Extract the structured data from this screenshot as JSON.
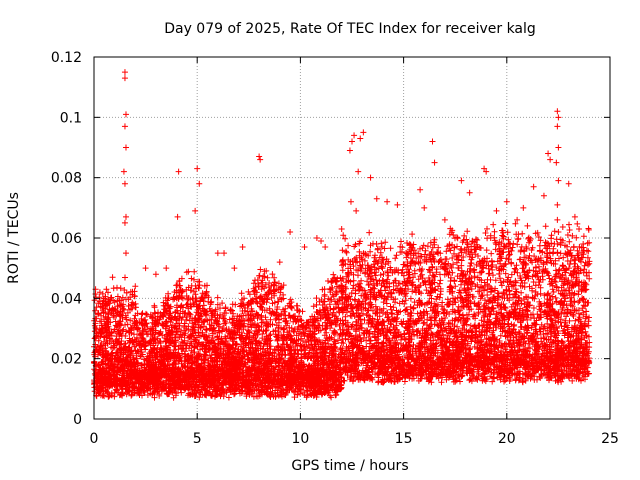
{
  "chart_data": {
    "type": "scatter",
    "title": "Day 079 of 2025, Rate Of TEC Index for receiver kalg",
    "xlabel": "GPS time / hours",
    "ylabel": "ROTI / TECUs",
    "xlim": [
      0,
      25
    ],
    "ylim": [
      0,
      0.12
    ],
    "x_ticks": [
      0,
      5,
      10,
      15,
      20,
      25
    ],
    "x_tick_labels": [
      "0",
      "5",
      "10",
      "15",
      "20",
      "25"
    ],
    "y_ticks": [
      0,
      0.02,
      0.04,
      0.06,
      0.08,
      0.1,
      0.12
    ],
    "y_tick_labels": [
      "0",
      "0.02",
      "0.04",
      "0.06",
      "0.08",
      "0.1",
      "0.12"
    ],
    "grid": true,
    "marker": "plus",
    "color": "#ff0000",
    "series": [
      {
        "x": [
          1.5,
          1.5,
          1.55,
          1.5,
          1.55,
          1.45,
          1.5,
          1.55,
          1.5,
          1.55,
          22.45,
          22.5,
          22.45,
          22.5,
          22.4,
          22.5,
          22.45,
          22.45,
          22.5,
          22.45,
          12.4,
          12.5,
          12.6,
          12.9,
          13.05,
          13.4,
          12.45,
          12.8,
          12.7,
          8.0,
          8.05,
          16.4,
          16.5,
          17.8,
          18.9,
          19.0,
          21.3,
          22.0,
          22.1,
          23.0,
          4.1,
          4.05,
          5.0,
          5.1,
          4.9,
          3.5,
          6.3,
          7.2,
          9.5,
          11.0,
          11.2,
          12.0,
          14.2,
          15.3,
          16.0,
          17.0,
          18.2,
          20.0,
          20.5,
          21.0,
          23.5,
          23.7,
          2.0,
          2.5,
          0.9,
          0.6,
          3.0,
          6.0,
          6.8,
          7.8,
          9.0,
          10.2,
          10.8,
          13.7,
          14.7,
          15.8,
          19.5,
          20.8,
          21.8,
          23.3
        ],
        "y": [
          0.115,
          0.113,
          0.101,
          0.097,
          0.09,
          0.082,
          0.078,
          0.067,
          0.065,
          0.055,
          0.102,
          0.1,
          0.097,
          0.09,
          0.085,
          0.079,
          0.071,
          0.066,
          0.062,
          0.058,
          0.089,
          0.092,
          0.094,
          0.093,
          0.095,
          0.08,
          0.072,
          0.082,
          0.069,
          0.087,
          0.086,
          0.092,
          0.085,
          0.079,
          0.083,
          0.082,
          0.077,
          0.088,
          0.086,
          0.078,
          0.082,
          0.067,
          0.083,
          0.078,
          0.069,
          0.05,
          0.055,
          0.057,
          0.062,
          0.059,
          0.057,
          0.063,
          0.072,
          0.058,
          0.07,
          0.066,
          0.075,
          0.072,
          0.066,
          0.064,
          0.063,
          0.058,
          0.044,
          0.05,
          0.047,
          0.043,
          0.048,
          0.055,
          0.05,
          0.046,
          0.052,
          0.057,
          0.06,
          0.073,
          0.071,
          0.076,
          0.069,
          0.07,
          0.074,
          0.067
        ]
      }
    ]
  }
}
